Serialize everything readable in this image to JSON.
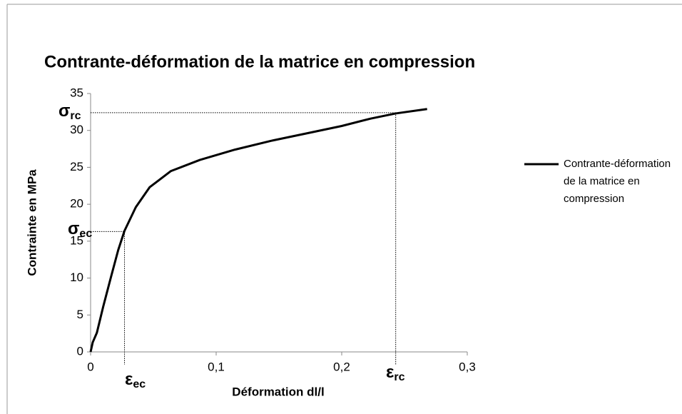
{
  "chart_data": {
    "type": "line",
    "title": "Contrante-déformation de la matrice en compression",
    "x_label": "Déformation dl/l",
    "y_label": "Contrainte en MPa",
    "xlim": [
      0,
      0.3
    ],
    "ylim": [
      0,
      35
    ],
    "xticks": [
      0,
      {
        "value": 0.1,
        "label": "0,1"
      },
      {
        "value": 0.2,
        "label": "0,2"
      },
      {
        "value": 0.3,
        "label": "0,3"
      }
    ],
    "yticks": [
      0,
      5,
      10,
      15,
      20,
      25,
      30,
      35
    ],
    "legend": "right",
    "series": [
      {
        "name": "Contrante-déformation de la matrice en compression",
        "color": "#000000",
        "x": [
          0,
          0.0017,
          0.005,
          0.01,
          0.016,
          0.022,
          0.027,
          0.036,
          0.047,
          0.064,
          0.087,
          0.115,
          0.144,
          0.172,
          0.2,
          0.223,
          0.243,
          0.268
        ],
        "values": [
          0,
          1.3,
          2.6,
          6.1,
          10,
          13.8,
          16.4,
          19.6,
          22.3,
          24.5,
          26,
          27.4,
          28.6,
          29.6,
          30.6,
          31.6,
          32.3,
          32.9
        ]
      }
    ],
    "guides": [
      {
        "x": 0.243,
        "y": 32.4
      },
      {
        "x": 0.027,
        "y": 16.3
      }
    ],
    "annotations": [
      {
        "symbol": "σ",
        "sub": "rc"
      },
      {
        "symbol": "σ",
        "sub": "ec"
      },
      {
        "symbol": "ε",
        "sub": "ec"
      },
      {
        "symbol": "ε",
        "sub": "rc"
      }
    ]
  }
}
